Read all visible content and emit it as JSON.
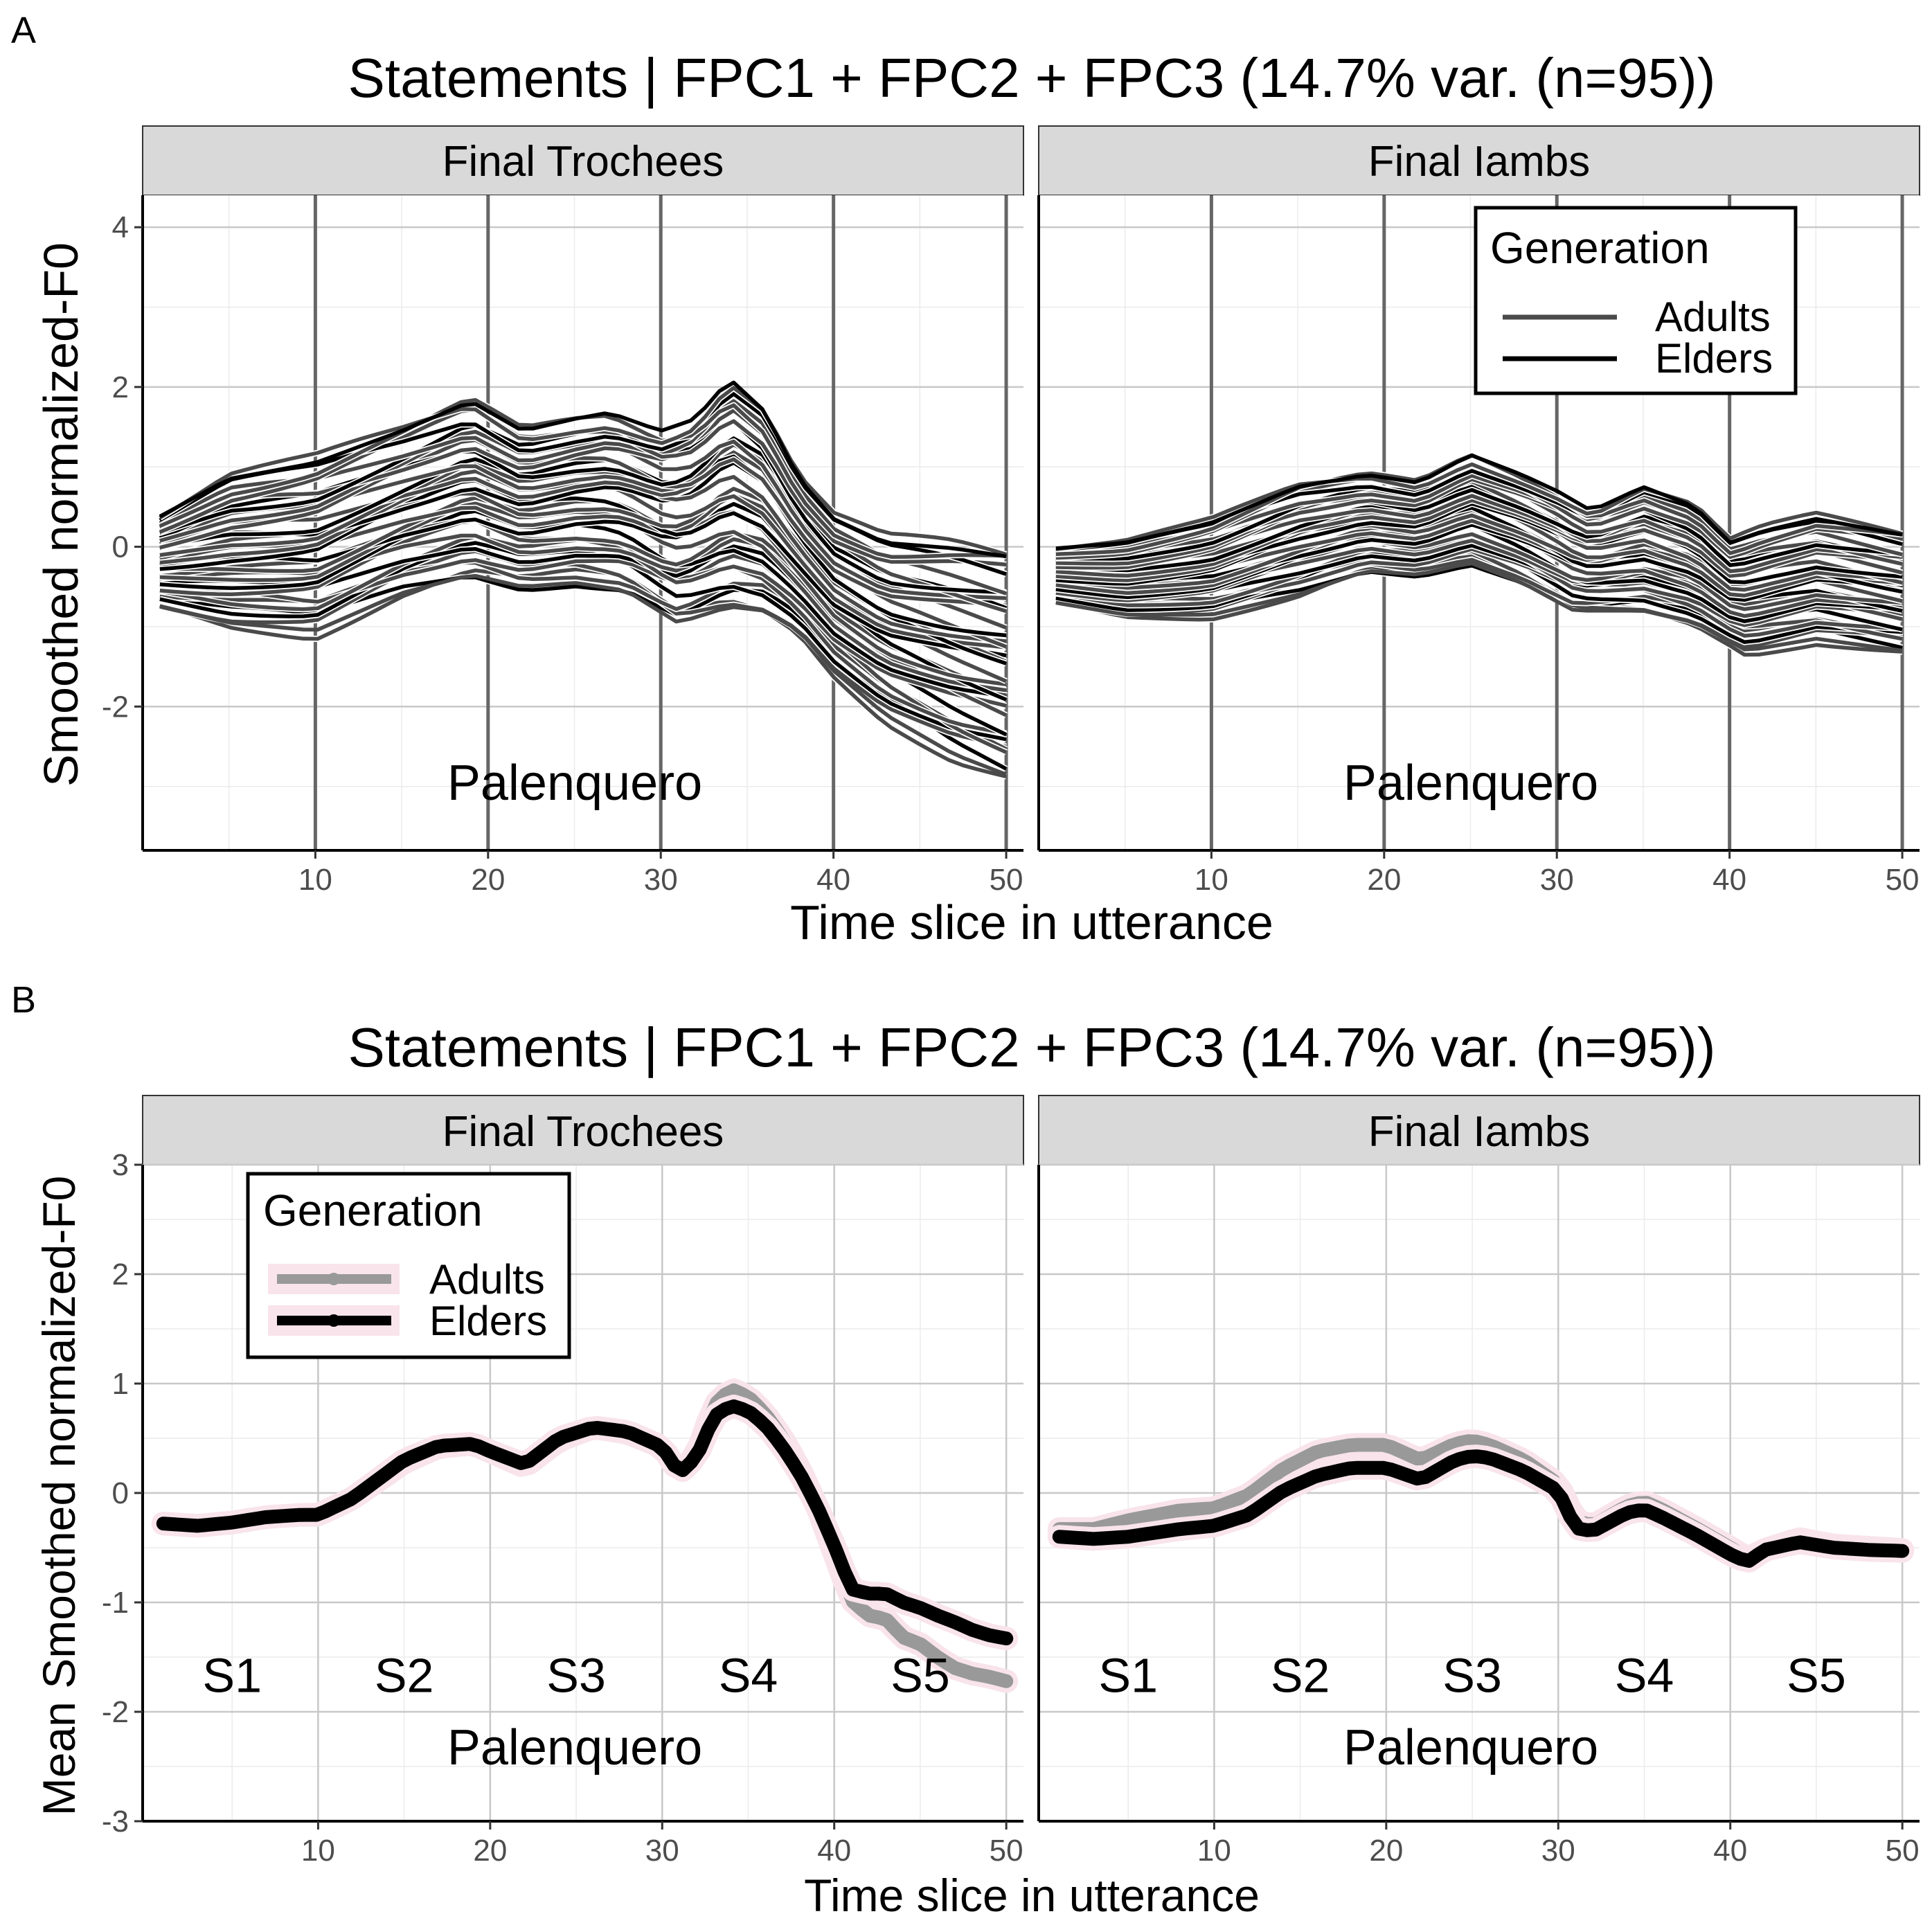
{
  "figure": {
    "panel_a_label": "A",
    "panel_b_label": "B"
  },
  "chart_data": [
    {
      "id": "A",
      "type": "line",
      "title": "Statements | FPC1 + FPC2 + FPC3 (14.7% var. (n=95))",
      "xlabel": "Time slice in utterance",
      "ylabel": "Smoothed normalized-F0",
      "xlim": [
        0,
        51
      ],
      "ylim": [
        -3.8,
        4.4
      ],
      "xticks": [
        10,
        20,
        30,
        40,
        50
      ],
      "yticks": [
        -2,
        0,
        2,
        4
      ],
      "ytick_labels": [
        "-2",
        "0",
        "2",
        "4"
      ],
      "grid": true,
      "legend": {
        "title": "Generation",
        "position": "top-right of Final Iambs panel",
        "entries": [
          {
            "label": "Adults",
            "color": "#4a4a4a"
          },
          {
            "label": "Elders",
            "color": "#000000"
          }
        ]
      },
      "vlines": [
        10,
        20,
        30,
        40,
        50
      ],
      "facets": [
        {
          "strip": "Final Trochees",
          "annotation": "Palenquero",
          "x_start": 1,
          "description": "many individual smoothed curves per speaker (Adults dark gray, Elders black); envelope given by upper/lower bounding curves",
          "envelope_upper": [
            [
              1,
              0.38
            ],
            [
              5,
              0.85
            ],
            [
              10,
              1.05
            ],
            [
              15,
              1.45
            ],
            [
              19,
              1.82
            ],
            [
              22,
              1.45
            ],
            [
              25,
              1.6
            ],
            [
              27,
              1.68
            ],
            [
              30,
              1.45
            ],
            [
              32,
              1.6
            ],
            [
              34,
              2.1
            ],
            [
              36,
              1.7
            ],
            [
              38,
              0.85
            ],
            [
              40,
              0.35
            ],
            [
              43,
              0.05
            ],
            [
              47,
              -0.02
            ],
            [
              50,
              -0.12
            ]
          ],
          "envelope_lower": [
            [
              1,
              -0.75
            ],
            [
              5,
              -0.95
            ],
            [
              10,
              -1.05
            ],
            [
              15,
              -0.58
            ],
            [
              19,
              -0.35
            ],
            [
              22,
              -0.5
            ],
            [
              25,
              -0.45
            ],
            [
              28,
              -0.55
            ],
            [
              31,
              -0.95
            ],
            [
              34,
              -0.75
            ],
            [
              36,
              -0.8
            ],
            [
              38,
              -1.05
            ],
            [
              40,
              -1.55
            ],
            [
              43,
              -2.1
            ],
            [
              47,
              -2.6
            ],
            [
              50,
              -2.85
            ]
          ],
          "representative_series": [
            {
              "name": "Adults",
              "x": [
                1,
                5,
                10,
                15,
                19,
                22,
                25,
                28,
                30,
                32,
                34,
                36,
                38,
                40,
                43,
                47,
                50
              ],
              "y": [
                -0.3,
                -0.25,
                -0.1,
                0.25,
                0.45,
                0.25,
                0.6,
                0.6,
                0.45,
                0.3,
                0.9,
                0.6,
                -0.1,
                -0.9,
                -1.2,
                -1.5,
                -1.7
              ]
            },
            {
              "name": "Elders",
              "x": [
                1,
                5,
                10,
                15,
                19,
                22,
                25,
                28,
                30,
                32,
                34,
                36,
                38,
                40,
                43,
                47,
                50
              ],
              "y": [
                -0.3,
                -0.25,
                -0.1,
                0.25,
                0.45,
                0.25,
                0.6,
                0.6,
                0.45,
                0.3,
                0.8,
                0.55,
                -0.05,
                -0.75,
                -0.95,
                -1.15,
                -1.3
              ]
            }
          ]
        },
        {
          "strip": "Final Iambs",
          "annotation": "Palenquero",
          "x_start": 1,
          "description": "many individual smoothed curves per speaker (Adults dark gray, Elders black); envelope given by upper/lower bounding curves",
          "envelope_upper": [
            [
              1,
              -0.02
            ],
            [
              5,
              0.05
            ],
            [
              10,
              0.3
            ],
            [
              15,
              0.75
            ],
            [
              19,
              0.9
            ],
            [
              22,
              0.8
            ],
            [
              25,
              1.15
            ],
            [
              28,
              0.9
            ],
            [
              30,
              0.7
            ],
            [
              32,
              0.45
            ],
            [
              35,
              0.75
            ],
            [
              38,
              0.5
            ],
            [
              40,
              0.05
            ],
            [
              42,
              0.2
            ],
            [
              45,
              0.35
            ],
            [
              50,
              0.15
            ]
          ],
          "envelope_lower": [
            [
              1,
              -0.7
            ],
            [
              5,
              -0.85
            ],
            [
              10,
              -0.85
            ],
            [
              15,
              -0.6
            ],
            [
              19,
              -0.3
            ],
            [
              22,
              -0.35
            ],
            [
              25,
              -0.2
            ],
            [
              28,
              -0.45
            ],
            [
              31,
              -0.8
            ],
            [
              35,
              -0.8
            ],
            [
              38,
              -0.95
            ],
            [
              41,
              -1.3
            ],
            [
              45,
              -1.15
            ],
            [
              50,
              -1.3
            ]
          ],
          "representative_series": [
            {
              "name": "Adults",
              "x": [
                1,
                5,
                10,
                15,
                18,
                20,
                22,
                25,
                28,
                30,
                31,
                34,
                35,
                38,
                41,
                44,
                47,
                50
              ],
              "y": [
                -0.33,
                -0.28,
                -0.15,
                0.3,
                0.42,
                0.42,
                0.3,
                0.47,
                0.3,
                0.1,
                -0.33,
                -0.15,
                -0.1,
                -0.35,
                -0.6,
                -0.45,
                -0.5,
                -0.52
              ]
            },
            {
              "name": "Elders",
              "x": [
                1,
                5,
                10,
                15,
                18,
                20,
                22,
                25,
                28,
                30,
                31,
                34,
                35,
                38,
                41,
                44,
                47,
                50
              ],
              "y": [
                -0.4,
                -0.4,
                -0.3,
                0.1,
                0.22,
                0.22,
                0.1,
                0.32,
                0.2,
                0.02,
                -0.38,
                -0.22,
                -0.18,
                -0.4,
                -0.62,
                -0.45,
                -0.5,
                -0.52
              ]
            }
          ]
        }
      ]
    },
    {
      "id": "B",
      "type": "line",
      "title": "Statements | FPC1 + FPC2 + FPC3 (14.7% var. (n=95))",
      "xlabel": "Time slice in utterance",
      "ylabel": "Mean Smoothed normalized-F0",
      "xlim": [
        -0.2,
        51
      ],
      "ylim": [
        -3,
        3
      ],
      "xticks": [
        10,
        20,
        30,
        40,
        50
      ],
      "yticks": [
        -3,
        -2,
        -1,
        0,
        1,
        2,
        3
      ],
      "ytick_labels": [
        "-3",
        "-2",
        "-1",
        "0",
        "1",
        "2",
        "3"
      ],
      "grid": true,
      "legend": {
        "title": "Generation",
        "position": "top-left of Final Trochees panel",
        "entries": [
          {
            "label": "Adults",
            "color": "#999999"
          },
          {
            "label": "Elders",
            "color": "#000000"
          }
        ]
      },
      "syllable_labels": [
        {
          "label": "S1",
          "x": 5
        },
        {
          "label": "S2",
          "x": 15
        },
        {
          "label": "S3",
          "x": 25
        },
        {
          "label": "S4",
          "x": 35
        },
        {
          "label": "S5",
          "x": 45
        }
      ],
      "syllable_label_y": -1.82,
      "facets": [
        {
          "strip": "Final Trochees",
          "annotation": "Palenquero",
          "series": [
            {
              "name": "Adults",
              "x": [
                1,
                3,
                5,
                7,
                9,
                10,
                12,
                15,
                17,
                19,
                20,
                22,
                24,
                26,
                28,
                30,
                31,
                32,
                33,
                34,
                35,
                36,
                37,
                38,
                39,
                40,
                41,
                42,
                43,
                44,
                45,
                46,
                47,
                48,
                49,
                50
              ],
              "y": [
                -0.28,
                -0.3,
                -0.27,
                -0.22,
                -0.2,
                -0.2,
                -0.05,
                0.28,
                0.42,
                0.45,
                0.38,
                0.24,
                0.48,
                0.6,
                0.55,
                0.42,
                0.18,
                0.35,
                0.8,
                0.95,
                0.88,
                0.72,
                0.5,
                0.22,
                -0.12,
                -0.55,
                -0.98,
                -1.12,
                -1.15,
                -1.32,
                -1.38,
                -1.5,
                -1.6,
                -1.65,
                -1.68,
                -1.72
              ]
            },
            {
              "name": "Elders",
              "x": [
                1,
                3,
                5,
                7,
                9,
                10,
                12,
                15,
                17,
                19,
                20,
                22,
                24,
                26,
                28,
                30,
                31,
                32,
                33,
                34,
                35,
                36,
                37,
                38,
                39,
                40,
                41,
                42,
                43,
                44,
                45,
                46,
                47,
                48,
                49,
                50
              ],
              "y": [
                -0.28,
                -0.3,
                -0.27,
                -0.22,
                -0.2,
                -0.2,
                -0.05,
                0.3,
                0.43,
                0.45,
                0.38,
                0.26,
                0.5,
                0.6,
                0.56,
                0.42,
                0.18,
                0.33,
                0.7,
                0.8,
                0.75,
                0.62,
                0.42,
                0.18,
                -0.12,
                -0.48,
                -0.88,
                -0.92,
                -0.92,
                -1.0,
                -1.05,
                -1.12,
                -1.18,
                -1.25,
                -1.3,
                -1.33
              ]
            }
          ]
        },
        {
          "strip": "Final Iambs",
          "annotation": "Palenquero",
          "series": [
            {
              "name": "Adults",
              "x": [
                1,
                3,
                5,
                8,
                10,
                12,
                14,
                16,
                18,
                20,
                22,
                24,
                25,
                26,
                28,
                30,
                31,
                32,
                34,
                35,
                36,
                38,
                40,
                41,
                42,
                44,
                46,
                48,
                50
              ],
              "y": [
                -0.33,
                -0.33,
                -0.25,
                -0.16,
                -0.14,
                -0.02,
                0.22,
                0.38,
                0.44,
                0.44,
                0.3,
                0.45,
                0.48,
                0.44,
                0.3,
                0.08,
                -0.25,
                -0.3,
                -0.12,
                -0.08,
                -0.15,
                -0.32,
                -0.5,
                -0.6,
                -0.52,
                -0.42,
                -0.48,
                -0.5,
                -0.52
              ]
            },
            {
              "name": "Elders",
              "x": [
                1,
                3,
                5,
                8,
                10,
                12,
                14,
                16,
                18,
                20,
                22,
                24,
                25,
                26,
                28,
                30,
                31,
                32,
                34,
                35,
                36,
                38,
                40,
                41,
                42,
                44,
                46,
                48,
                50
              ],
              "y": [
                -0.4,
                -0.42,
                -0.4,
                -0.33,
                -0.3,
                -0.2,
                0.02,
                0.16,
                0.23,
                0.23,
                0.12,
                0.3,
                0.34,
                0.32,
                0.2,
                0.02,
                -0.32,
                -0.35,
                -0.18,
                -0.15,
                -0.22,
                -0.38,
                -0.56,
                -0.63,
                -0.52,
                -0.45,
                -0.5,
                -0.52,
                -0.53
              ]
            }
          ]
        }
      ]
    }
  ]
}
